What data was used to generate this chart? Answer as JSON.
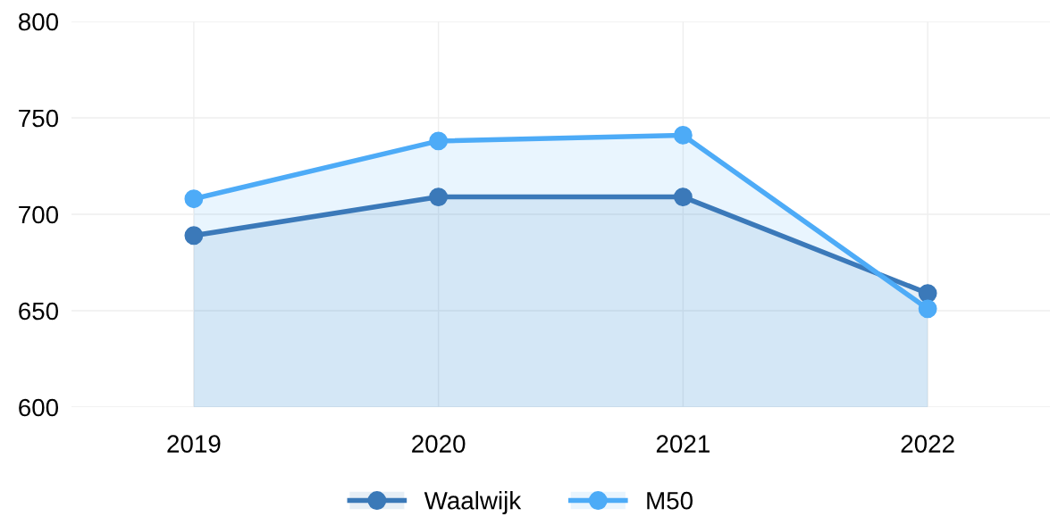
{
  "chart_data": {
    "type": "area",
    "categories": [
      "2019",
      "2020",
      "2021",
      "2022"
    ],
    "series": [
      {
        "name": "Waalwijk",
        "color": "#3b79b9",
        "values": [
          689,
          709,
          709,
          659
        ]
      },
      {
        "name": "M50",
        "color": "#4dabf7",
        "values": [
          708,
          738,
          741,
          651
        ]
      }
    ],
    "ylim": [
      600,
      800
    ],
    "yticks": [
      600,
      650,
      700,
      750,
      800
    ],
    "grid": true,
    "legend": "bottom",
    "marker": "circle",
    "line_style": "solid"
  }
}
